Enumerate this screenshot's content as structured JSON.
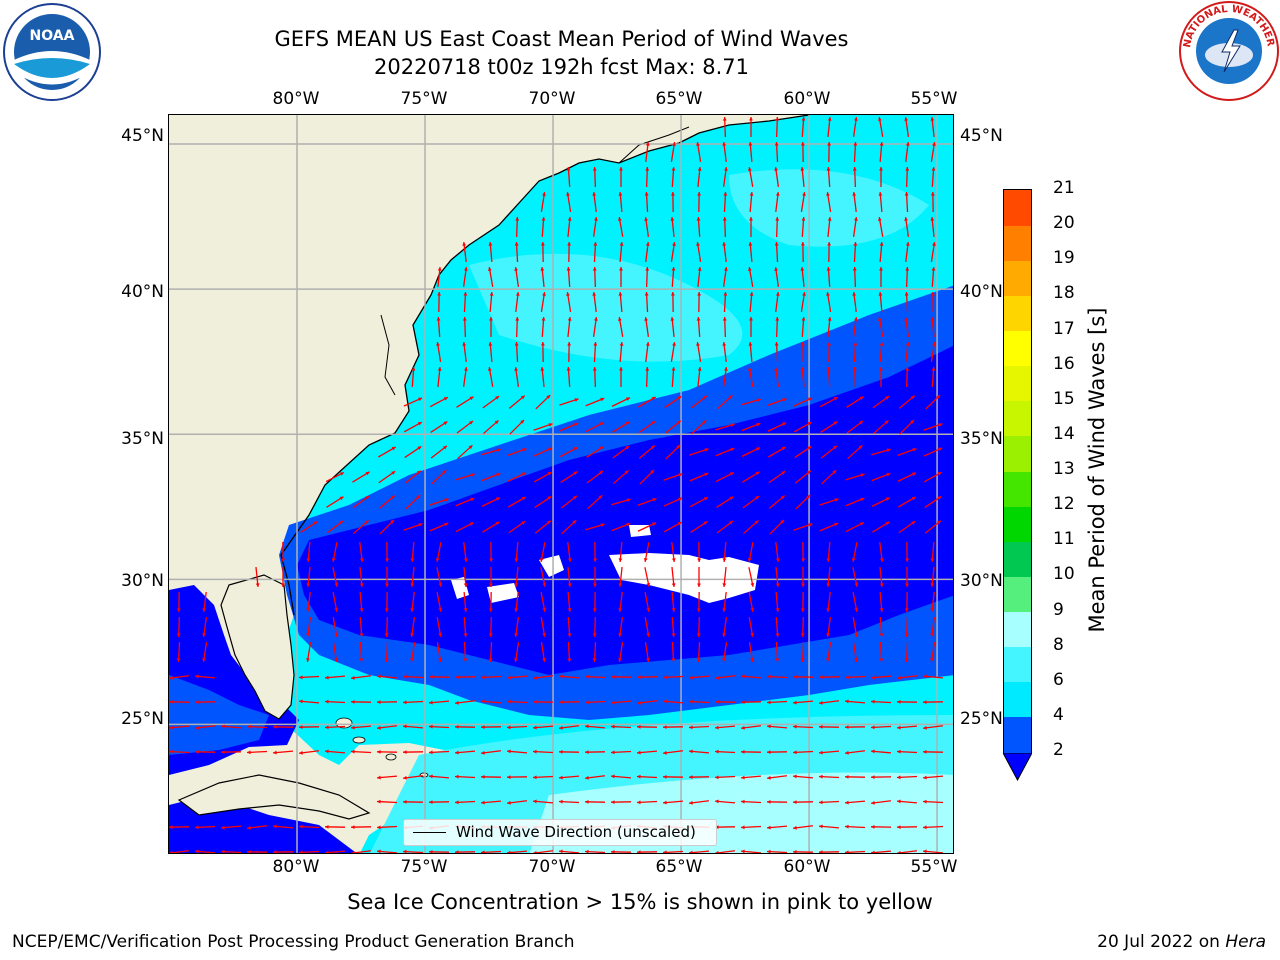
{
  "header": {
    "title_line1": "GEFS MEAN US East Coast Mean Period of Wind Waves",
    "title_line2": "20220718 t00z 192h fcst   Max: 8.71"
  },
  "logos": {
    "left_text": "NOAA",
    "left_ring_text": "NATIONAL OCEANIC AND ATMOSPHERIC ADMINISTRATION · U.S. DEPARTMENT OF COMMERCE",
    "right_ring_text": "NATIONAL WEATHER SERVICE"
  },
  "map": {
    "lon_range": [
      -85,
      -54.3
    ],
    "lat_range": [
      20.5,
      46
    ],
    "x_ticks": [
      "80°W",
      "75°W",
      "70°W",
      "65°W",
      "60°W",
      "55°W"
    ],
    "y_ticks": [
      "45°N",
      "40°N",
      "35°N",
      "30°N",
      "25°N"
    ],
    "gridlines": true,
    "arrow_color": "#ff0000",
    "legend_label": "Wind Wave Direction (unscaled)"
  },
  "colorbar": {
    "label": "Mean Period of Wind Waves [s]",
    "ticks": [
      "2",
      "4",
      "6",
      "8",
      "9",
      "10",
      "11",
      "12",
      "13",
      "14",
      "15",
      "16",
      "17",
      "18",
      "19",
      "20",
      "21"
    ],
    "colors": [
      "#0055ff",
      "#00eaff",
      "#44f5ff",
      "#a7ffff",
      "#55ef7d",
      "#00c850",
      "#00d700",
      "#44e600",
      "#9af000",
      "#c8f500",
      "#e6f500",
      "#ffff00",
      "#ffd500",
      "#ffaa00",
      "#ff8000",
      "#ff4a00",
      "#ff0000"
    ],
    "extend_color": "#0000ff"
  },
  "footer": {
    "note": "Sea Ice Concentration > 15% is shown in pink to yellow",
    "credit": "NCEP/EMC/Verification Post Processing Product Generation Branch",
    "date": "20 Jul 2022 on ",
    "machine": "Hera"
  }
}
